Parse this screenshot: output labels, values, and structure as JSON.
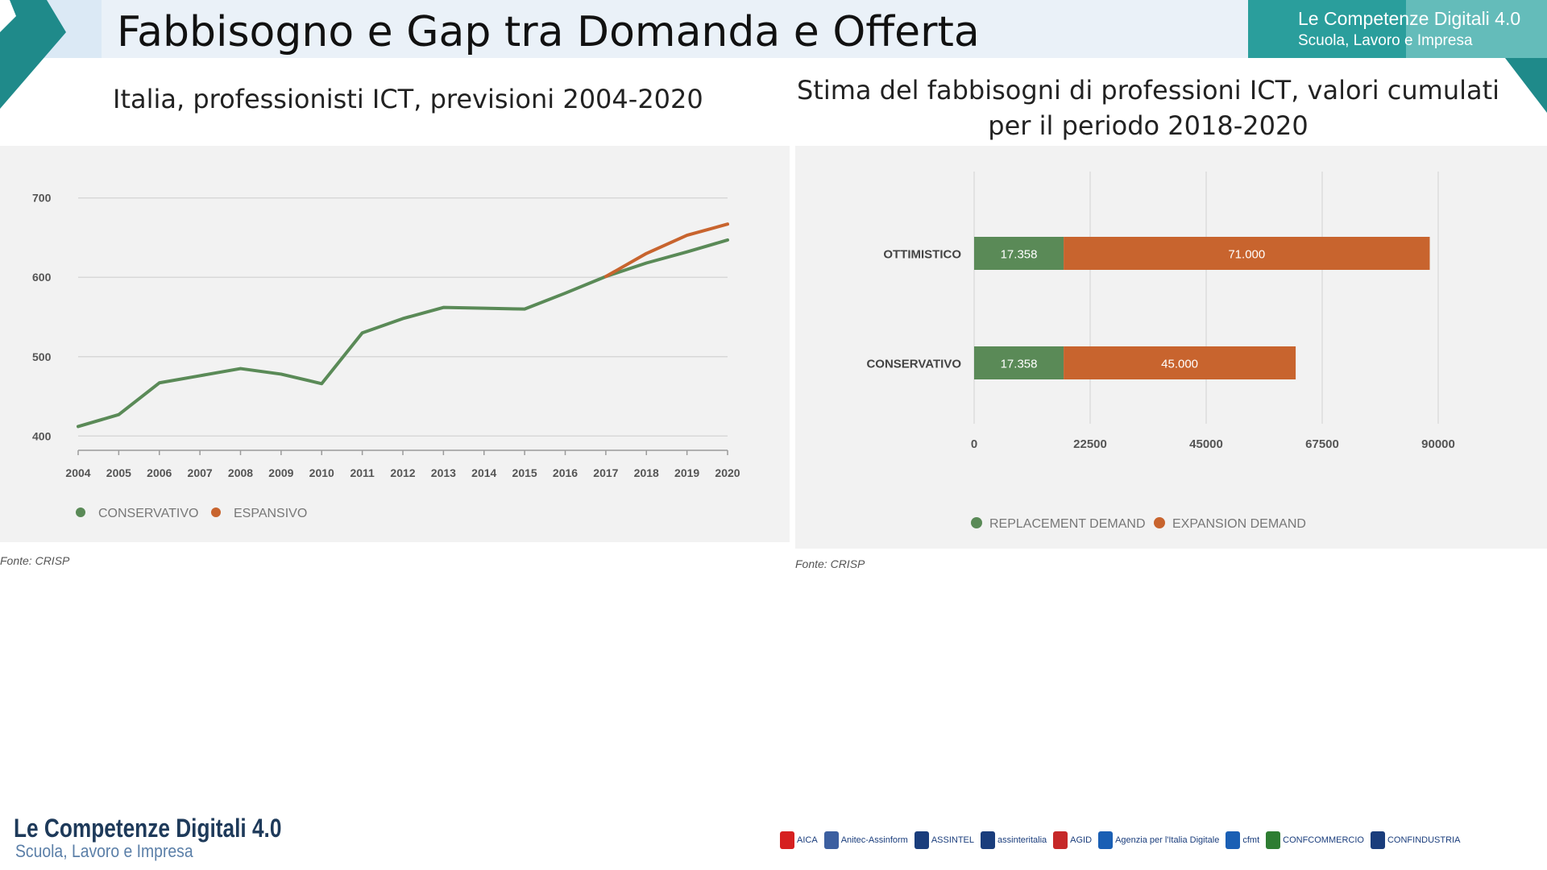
{
  "header": {
    "title": "Fabbisogno e Gap tra Domanda e Offerta",
    "brand_title": "Le Competenze Digitali 4.0",
    "brand_subtitle": "Scuola, Lavoro e Impresa"
  },
  "left_chart": {
    "caption": "Italia, professionisti ICT, previsioni 2004-2020",
    "source": "Fonte: CRISP"
  },
  "right_chart": {
    "caption": "Stima del fabbisogni di professioni ICT, valori cumulati per il periodo 2018-2020",
    "source": "Fonte: CRISP"
  },
  "footer": {
    "logo_title": "Le Competenze Digitali 4.0",
    "logo_subtitle": "Scuola, Lavoro e Impresa",
    "partners": [
      "AICA",
      "Anitec-Assinform",
      "ASSINTEL",
      "assinteritalia",
      "AGID",
      "Agenzia per l'Italia Digitale",
      "cfmt",
      "CONFCOMMERCIO",
      "CONFINDUSTRIA"
    ]
  },
  "colors": {
    "green": "#5a8a57",
    "orange": "#c8642e",
    "teal": "#2a9e9c",
    "panel": "#f2f2f2"
  },
  "chart_data": [
    {
      "type": "line",
      "title": "",
      "x": [
        2004,
        2005,
        2006,
        2007,
        2008,
        2009,
        2010,
        2011,
        2012,
        2013,
        2014,
        2015,
        2016,
        2017,
        2018,
        2019,
        2020
      ],
      "series": [
        {
          "name": "CONSERVATIVO",
          "values": [
            412,
            427,
            467,
            476,
            485,
            478,
            466,
            530,
            548,
            562,
            561,
            560,
            580,
            601,
            618,
            632,
            647
          ]
        },
        {
          "name": "ESPANSIVO",
          "values": [
            null,
            null,
            null,
            null,
            null,
            null,
            null,
            null,
            null,
            null,
            null,
            null,
            null,
            601,
            630,
            653,
            667
          ]
        }
      ],
      "ylim": [
        380,
        720
      ],
      "yticks": [
        400,
        500,
        600,
        700
      ],
      "grid": true,
      "legend": "bottom-left"
    },
    {
      "type": "bar",
      "orientation": "horizontal",
      "stacked": true,
      "categories": [
        "OTTIMISTICO",
        "CONSERVATIVO"
      ],
      "series": [
        {
          "name": "REPLACEMENT DEMAND",
          "values": [
            17358,
            17358
          ],
          "labels": [
            "17.358",
            "17.358"
          ]
        },
        {
          "name": "EXPANSION DEMAND",
          "values": [
            71000,
            45000
          ],
          "labels": [
            "71.000",
            "45.000"
          ]
        }
      ],
      "xlim": [
        0,
        90000
      ],
      "xticks": [
        0,
        22500,
        45000,
        67500,
        90000
      ],
      "grid": true,
      "legend": "bottom"
    }
  ]
}
